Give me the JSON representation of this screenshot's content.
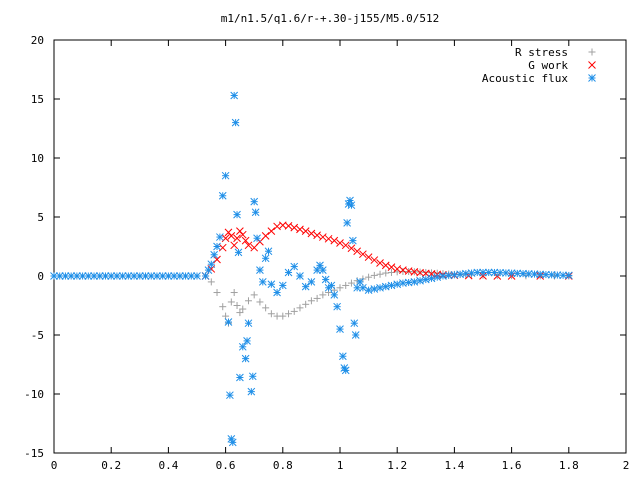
{
  "chart_data": {
    "type": "scatter",
    "title": "m1/n1.5/q1.6/r-+.30-j155/M5.0/512",
    "xlabel": "",
    "ylabel": "",
    "xlim": [
      0,
      2
    ],
    "ylim": [
      -15,
      20
    ],
    "x_ticks": [
      "0",
      "0.2",
      "0.4",
      "0.6",
      "0.8",
      "1",
      "1.2",
      "1.4",
      "1.6",
      "1.8",
      "2"
    ],
    "y_ticks": [
      "-15",
      "-10",
      "-5",
      "0",
      "5",
      "10",
      "15",
      "20"
    ],
    "grid": false,
    "legend_position": "top-right",
    "series": [
      {
        "name": "R stress",
        "marker": "plus",
        "color": "#a0a0a0",
        "points": [
          [
            0.53,
            0.0
          ],
          [
            0.55,
            -0.5
          ],
          [
            0.57,
            -1.4
          ],
          [
            0.59,
            -2.6
          ],
          [
            0.6,
            -3.4
          ],
          [
            0.61,
            -4.0
          ],
          [
            0.62,
            -2.2
          ],
          [
            0.63,
            -1.4
          ],
          [
            0.64,
            -2.5
          ],
          [
            0.65,
            -3.1
          ],
          [
            0.66,
            -2.8
          ],
          [
            0.68,
            -2.1
          ],
          [
            0.7,
            -1.6
          ],
          [
            0.72,
            -2.2
          ],
          [
            0.74,
            -2.7
          ],
          [
            0.76,
            -3.2
          ],
          [
            0.78,
            -3.4
          ],
          [
            0.8,
            -3.4
          ],
          [
            0.82,
            -3.2
          ],
          [
            0.84,
            -3.0
          ],
          [
            0.86,
            -2.7
          ],
          [
            0.88,
            -2.4
          ],
          [
            0.9,
            -2.1
          ],
          [
            0.92,
            -1.9
          ],
          [
            0.94,
            -1.6
          ],
          [
            0.96,
            -1.4
          ],
          [
            0.98,
            -1.2
          ],
          [
            1.0,
            -1.0
          ],
          [
            1.02,
            -0.8
          ],
          [
            1.04,
            -0.6
          ],
          [
            1.06,
            -0.4
          ],
          [
            1.08,
            -0.25
          ],
          [
            1.1,
            -0.1
          ],
          [
            1.12,
            0.05
          ],
          [
            1.14,
            0.15
          ],
          [
            1.16,
            0.25
          ],
          [
            1.18,
            0.3
          ],
          [
            1.2,
            0.35
          ],
          [
            1.22,
            0.38
          ],
          [
            1.24,
            0.38
          ],
          [
            1.26,
            0.36
          ],
          [
            1.28,
            0.33
          ],
          [
            1.3,
            0.3
          ],
          [
            1.32,
            0.27
          ],
          [
            1.34,
            0.24
          ],
          [
            1.36,
            0.2
          ],
          [
            1.38,
            0.17
          ],
          [
            1.4,
            0.14
          ],
          [
            1.42,
            0.12
          ],
          [
            1.44,
            0.1
          ],
          [
            1.46,
            0.08
          ],
          [
            1.5,
            0.06
          ],
          [
            1.55,
            0.04
          ],
          [
            1.6,
            0.03
          ],
          [
            1.65,
            0.02
          ],
          [
            1.7,
            0.01
          ],
          [
            1.75,
            0.0
          ],
          [
            1.8,
            0.0
          ]
        ]
      },
      {
        "name": "G work",
        "marker": "cross",
        "color": "#ff0000",
        "points": [
          [
            0.53,
            0.0
          ],
          [
            0.55,
            0.6
          ],
          [
            0.57,
            1.4
          ],
          [
            0.59,
            2.4
          ],
          [
            0.6,
            3.2
          ],
          [
            0.61,
            3.7
          ],
          [
            0.62,
            3.4
          ],
          [
            0.63,
            2.6
          ],
          [
            0.64,
            3.2
          ],
          [
            0.65,
            3.8
          ],
          [
            0.66,
            3.5
          ],
          [
            0.67,
            3.0
          ],
          [
            0.68,
            2.6
          ],
          [
            0.7,
            2.4
          ],
          [
            0.72,
            2.9
          ],
          [
            0.74,
            3.4
          ],
          [
            0.76,
            3.8
          ],
          [
            0.78,
            4.2
          ],
          [
            0.8,
            4.3
          ],
          [
            0.82,
            4.25
          ],
          [
            0.84,
            4.1
          ],
          [
            0.86,
            3.95
          ],
          [
            0.88,
            3.8
          ],
          [
            0.9,
            3.6
          ],
          [
            0.92,
            3.45
          ],
          [
            0.94,
            3.3
          ],
          [
            0.96,
            3.15
          ],
          [
            0.98,
            3.0
          ],
          [
            1.0,
            2.8
          ],
          [
            1.02,
            2.6
          ],
          [
            1.04,
            2.35
          ],
          [
            1.06,
            2.1
          ],
          [
            1.08,
            1.85
          ],
          [
            1.1,
            1.6
          ],
          [
            1.12,
            1.35
          ],
          [
            1.14,
            1.1
          ],
          [
            1.16,
            0.9
          ],
          [
            1.18,
            0.75
          ],
          [
            1.2,
            0.6
          ],
          [
            1.22,
            0.5
          ],
          [
            1.24,
            0.42
          ],
          [
            1.26,
            0.35
          ],
          [
            1.28,
            0.28
          ],
          [
            1.3,
            0.22
          ],
          [
            1.32,
            0.18
          ],
          [
            1.34,
            0.14
          ],
          [
            1.36,
            0.1
          ],
          [
            1.38,
            0.08
          ],
          [
            1.4,
            0.06
          ],
          [
            1.45,
            0.03
          ],
          [
            1.5,
            0.01
          ],
          [
            1.55,
            0.0
          ],
          [
            1.6,
            0.0
          ],
          [
            1.7,
            0.0
          ],
          [
            1.8,
            0.0
          ]
        ]
      },
      {
        "name": "Acoustic flux",
        "marker": "star",
        "color": "#1f8fe8",
        "points": [
          [
            0.0,
            0.0
          ],
          [
            0.02,
            0.0
          ],
          [
            0.04,
            0.0
          ],
          [
            0.06,
            0.0
          ],
          [
            0.08,
            0.0
          ],
          [
            0.1,
            0.0
          ],
          [
            0.12,
            0.0
          ],
          [
            0.14,
            0.0
          ],
          [
            0.16,
            0.0
          ],
          [
            0.18,
            0.0
          ],
          [
            0.2,
            0.0
          ],
          [
            0.22,
            0.0
          ],
          [
            0.24,
            0.0
          ],
          [
            0.26,
            0.0
          ],
          [
            0.28,
            0.0
          ],
          [
            0.3,
            0.0
          ],
          [
            0.32,
            0.0
          ],
          [
            0.34,
            0.0
          ],
          [
            0.36,
            0.0
          ],
          [
            0.38,
            0.0
          ],
          [
            0.4,
            0.0
          ],
          [
            0.42,
            0.0
          ],
          [
            0.44,
            0.0
          ],
          [
            0.46,
            0.0
          ],
          [
            0.48,
            0.0
          ],
          [
            0.5,
            0.0
          ],
          [
            0.53,
            0.0
          ],
          [
            0.54,
            0.5
          ],
          [
            0.55,
            1.0
          ],
          [
            0.56,
            1.8
          ],
          [
            0.57,
            2.5
          ],
          [
            0.58,
            3.3
          ],
          [
            0.59,
            6.8
          ],
          [
            0.6,
            8.5
          ],
          [
            0.61,
            -3.9
          ],
          [
            0.615,
            -10.1
          ],
          [
            0.62,
            -13.8
          ],
          [
            0.625,
            -14.1
          ],
          [
            0.63,
            15.3
          ],
          [
            0.635,
            13.0
          ],
          [
            0.64,
            5.2
          ],
          [
            0.645,
            2.0
          ],
          [
            0.65,
            -8.6
          ],
          [
            0.66,
            -6.0
          ],
          [
            0.67,
            -7.0
          ],
          [
            0.675,
            -5.5
          ],
          [
            0.68,
            -4.0
          ],
          [
            0.69,
            -9.8
          ],
          [
            0.695,
            -8.5
          ],
          [
            0.7,
            6.3
          ],
          [
            0.705,
            5.4
          ],
          [
            0.71,
            3.2
          ],
          [
            0.72,
            0.5
          ],
          [
            0.73,
            -0.5
          ],
          [
            0.74,
            1.5
          ],
          [
            0.75,
            2.1
          ],
          [
            0.76,
            -0.7
          ],
          [
            0.78,
            -1.4
          ],
          [
            0.8,
            -0.8
          ],
          [
            0.82,
            0.3
          ],
          [
            0.84,
            0.8
          ],
          [
            0.86,
            0.0
          ],
          [
            0.88,
            -0.9
          ],
          [
            0.9,
            -0.5
          ],
          [
            0.92,
            0.5
          ],
          [
            0.93,
            0.9
          ],
          [
            0.94,
            0.5
          ],
          [
            0.95,
            -0.3
          ],
          [
            0.96,
            -1.0
          ],
          [
            0.97,
            -0.8
          ],
          [
            0.98,
            -1.6
          ],
          [
            0.99,
            -2.6
          ],
          [
            1.0,
            -4.5
          ],
          [
            1.01,
            -6.8
          ],
          [
            1.015,
            -7.8
          ],
          [
            1.02,
            -8.0
          ],
          [
            1.025,
            4.5
          ],
          [
            1.03,
            6.1
          ],
          [
            1.035,
            6.4
          ],
          [
            1.04,
            6.0
          ],
          [
            1.045,
            3.0
          ],
          [
            1.05,
            -4.0
          ],
          [
            1.055,
            -5.0
          ],
          [
            1.06,
            -1.0
          ],
          [
            1.07,
            -0.5
          ],
          [
            1.08,
            -1.0
          ],
          [
            1.1,
            -1.2
          ],
          [
            1.12,
            -1.1
          ],
          [
            1.14,
            -1.0
          ],
          [
            1.16,
            -0.9
          ],
          [
            1.18,
            -0.8
          ],
          [
            1.2,
            -0.7
          ],
          [
            1.22,
            -0.6
          ],
          [
            1.24,
            -0.55
          ],
          [
            1.26,
            -0.5
          ],
          [
            1.28,
            -0.4
          ],
          [
            1.3,
            -0.3
          ],
          [
            1.32,
            -0.2
          ],
          [
            1.34,
            -0.1
          ],
          [
            1.36,
            0.0
          ],
          [
            1.38,
            0.05
          ],
          [
            1.4,
            0.1
          ],
          [
            1.42,
            0.15
          ],
          [
            1.44,
            0.2
          ],
          [
            1.46,
            0.25
          ],
          [
            1.48,
            0.3
          ],
          [
            1.5,
            0.3
          ],
          [
            1.52,
            0.3
          ],
          [
            1.54,
            0.3
          ],
          [
            1.56,
            0.28
          ],
          [
            1.58,
            0.26
          ],
          [
            1.6,
            0.24
          ],
          [
            1.62,
            0.22
          ],
          [
            1.64,
            0.2
          ],
          [
            1.66,
            0.18
          ],
          [
            1.68,
            0.16
          ],
          [
            1.7,
            0.14
          ],
          [
            1.72,
            0.12
          ],
          [
            1.74,
            0.1
          ],
          [
            1.76,
            0.08
          ],
          [
            1.78,
            0.06
          ],
          [
            1.8,
            0.05
          ]
        ]
      }
    ]
  }
}
